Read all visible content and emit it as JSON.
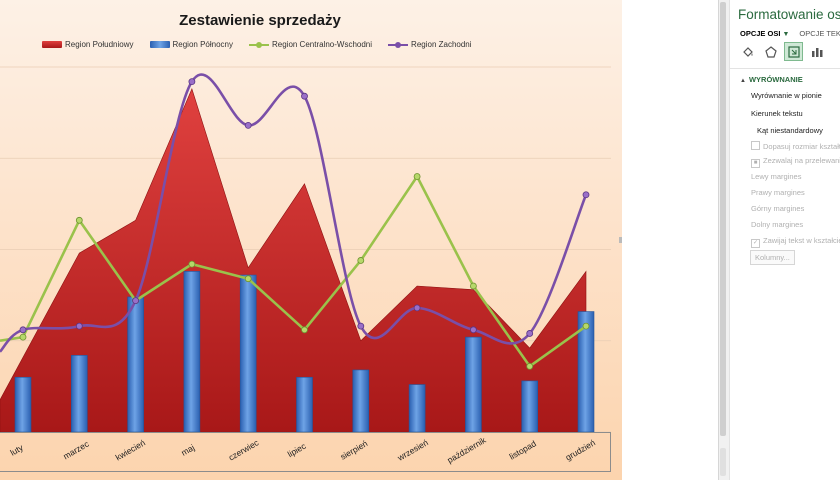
{
  "chart_data": {
    "type": "bar",
    "title": "Zestawienie sprzedaży",
    "categories": [
      "luty",
      "marzec",
      "kwiecień",
      "maj",
      "czerwiec",
      "lipiec",
      "sierpień",
      "wrzesień",
      "październik",
      "listopad",
      "grudzień"
    ],
    "series": [
      {
        "name": "Region Południowy",
        "kind": "area",
        "color": "#c8282a",
        "values": [
          null,
          49,
          58,
          94,
          45,
          68,
          25,
          40,
          39,
          23,
          44
        ]
      },
      {
        "name": "Region Północny",
        "kind": "bar",
        "color": "#3c78c8",
        "values": [
          15,
          21,
          37,
          44,
          43,
          15,
          17,
          13,
          26,
          14,
          33
        ]
      },
      {
        "name": "Region Centralno-Wschodni",
        "kind": "line",
        "color": "#9ac24b",
        "values": [
          26,
          58,
          36,
          46,
          42,
          28,
          47,
          70,
          40,
          18,
          29
        ]
      },
      {
        "name": "Region Zachodni",
        "kind": "smooth-line",
        "color": "#7a4fa8",
        "values": [
          28,
          29,
          36,
          96,
          84,
          92,
          29,
          34,
          28,
          27,
          65
        ]
      }
    ],
    "ylim": [
      0,
      100
    ],
    "legend_position": "top",
    "grid": true
  },
  "pane": {
    "title": "Formatowanie osi",
    "tab_axis": "OPCJE OSI",
    "tab_text": "OPCJE TEKSTU",
    "section": "WYRÓWNANIE",
    "options": [
      {
        "label": "Wyrównanie w pionie",
        "state": "enabled"
      },
      {
        "label": "Kierunek tekstu",
        "state": "enabled"
      },
      {
        "label": "Kąt niestandardowy",
        "state": "enabled"
      },
      {
        "label": "Dopasuj rozmiar kształtu",
        "state": "disabled",
        "check": "off"
      },
      {
        "label": "Zezwalaj na przelewanie",
        "state": "disabled",
        "check": "on"
      },
      {
        "label": "Lewy margines",
        "state": "disabled"
      },
      {
        "label": "Prawy margines",
        "state": "disabled"
      },
      {
        "label": "Górny margines",
        "state": "disabled"
      },
      {
        "label": "Dolny margines",
        "state": "disabled"
      },
      {
        "label": "Zawijaj tekst w kształcie",
        "state": "disabled",
        "check": "on"
      }
    ],
    "columns_button": "Kolumny...",
    "icons": [
      "fill-line-icon",
      "effects-icon",
      "size-properties-icon",
      "axis-options-icon"
    ]
  }
}
